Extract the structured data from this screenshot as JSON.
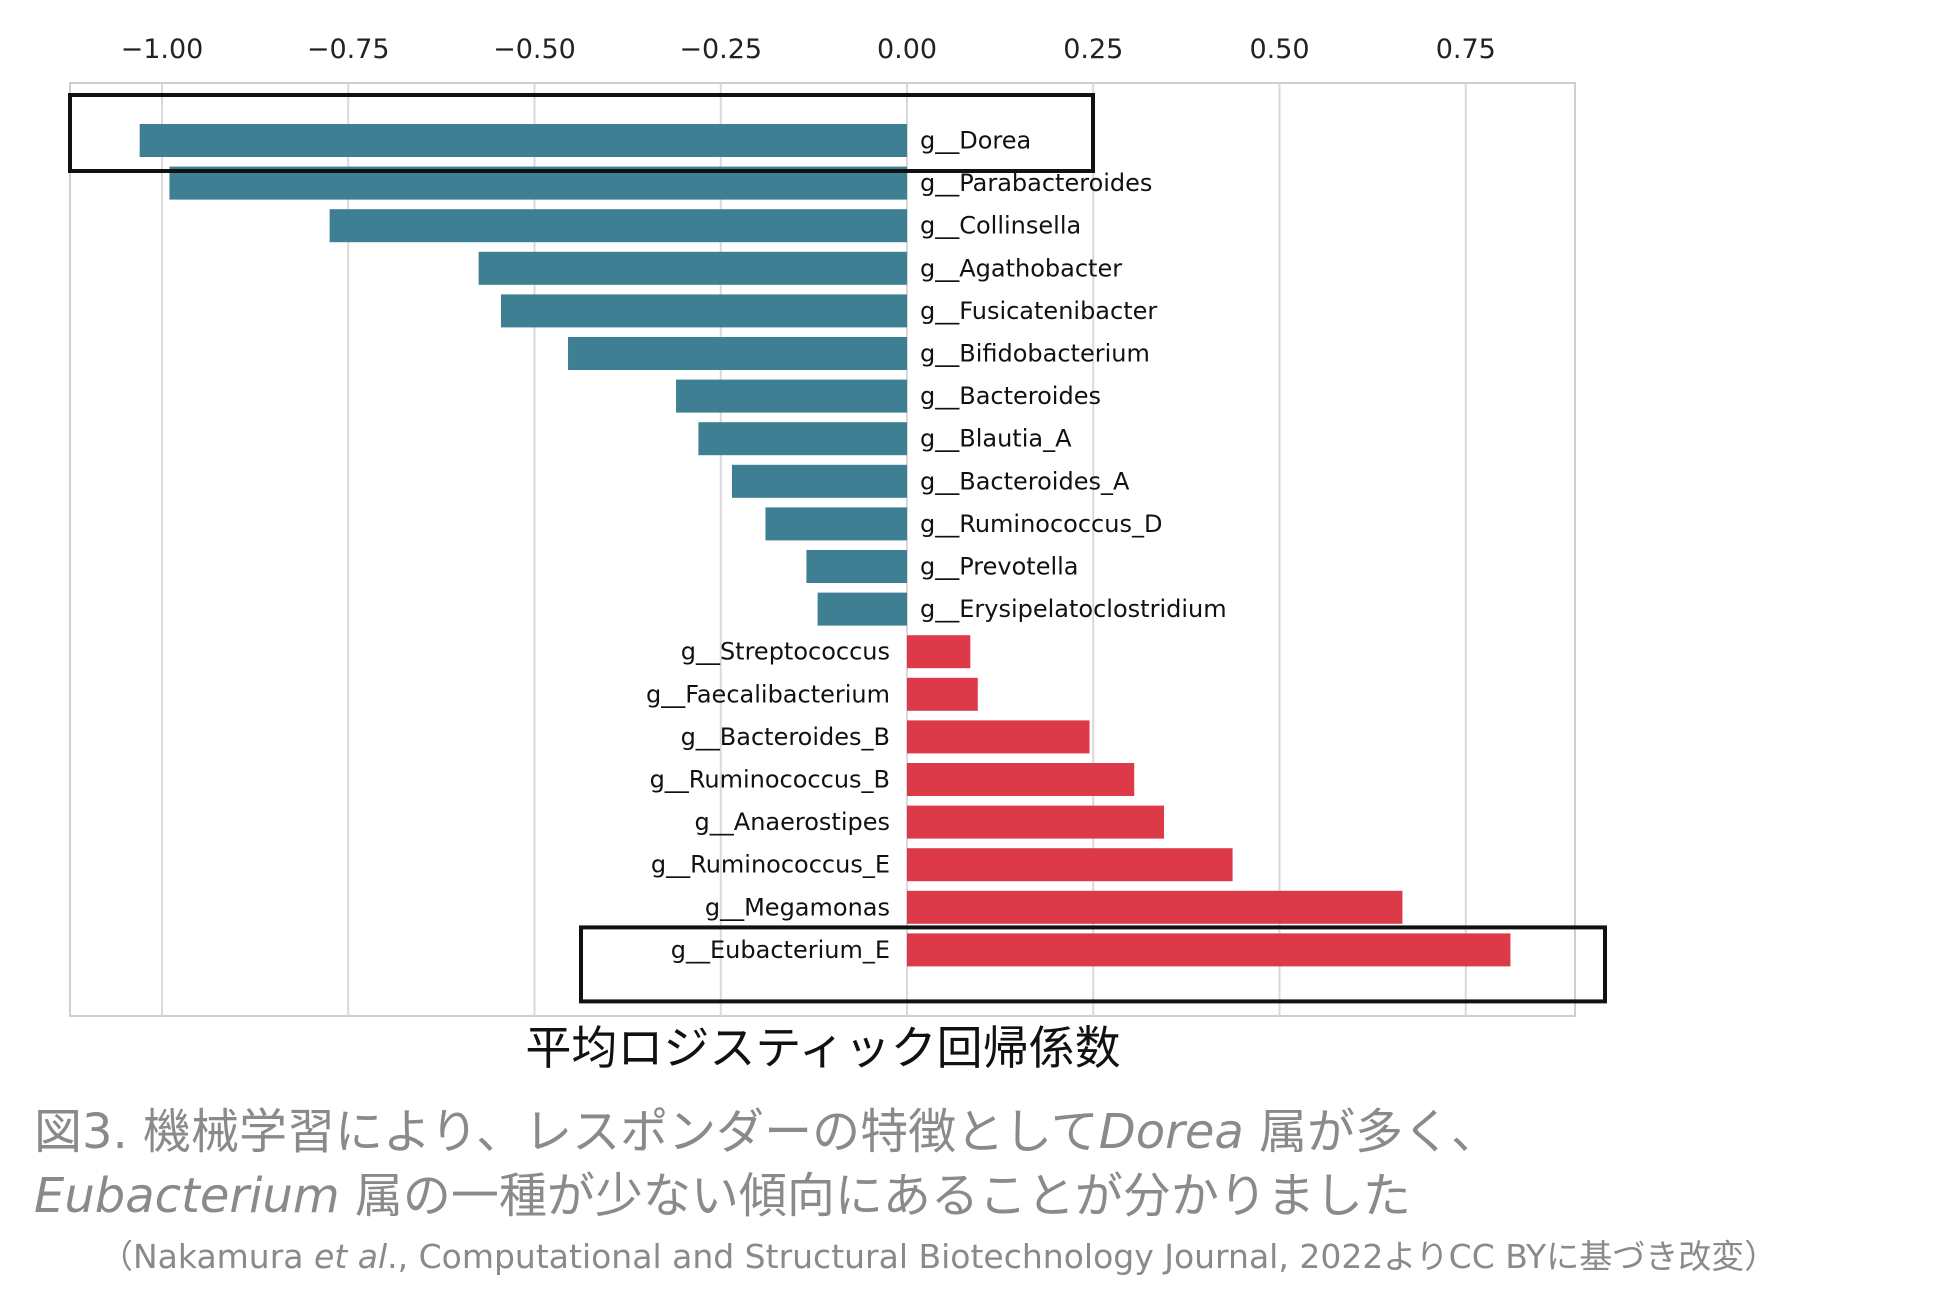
{
  "chart_data": {
    "type": "bar",
    "orientation": "horizontal",
    "xlabel": "平均ロジスティック回帰係数",
    "xlim": [
      -1.12,
      0.9
    ],
    "xticks": [
      -1.0,
      -0.75,
      -0.5,
      -0.25,
      0.0,
      0.25,
      0.5,
      0.75
    ],
    "xtick_labels": [
      "−1.00",
      "−0.75",
      "−0.50",
      "−0.25",
      "0.00",
      "0.25",
      "0.50",
      "0.75"
    ],
    "grid": true,
    "categories": [
      "g__Dorea",
      "g__Parabacteroides",
      "g__Collinsella",
      "g__Agathobacter",
      "g__Fusicatenibacter",
      "g__Bifidobacterium",
      "g__Bacteroides",
      "g__Blautia_A",
      "g__Bacteroides_A",
      "g__Ruminococcus_D",
      "g__Prevotella",
      "g__Erysipelatoclostridium",
      "g__Streptococcus",
      "g__Faecalibacterium",
      "g__Bacteroides_B",
      "g__Ruminococcus_B",
      "g__Anaerostipes",
      "g__Ruminococcus_E",
      "g__Megamonas",
      "g__Eubacterium_E"
    ],
    "values": [
      -1.03,
      -0.99,
      -0.775,
      -0.575,
      -0.545,
      -0.455,
      -0.31,
      -0.28,
      -0.235,
      -0.19,
      -0.135,
      -0.12,
      0.085,
      0.095,
      0.245,
      0.305,
      0.345,
      0.437,
      0.665,
      0.81
    ],
    "highlighted": [
      "g__Dorea",
      "g__Eubacterium_E"
    ],
    "colors": {
      "negative": "#3e7f93",
      "positive": "#dc3a48",
      "grid": "#d9d9d9",
      "highlight_box": "#111111"
    }
  },
  "caption": {
    "line1_pre": "図3. 機械学習により、レスポンダーの特徴として",
    "line1_genus": "Dorea",
    "line1_post": " 属が多く、",
    "line2_genus": "Eubacterium",
    "line2_post": " 属の一種が少ない傾向にあることが分かりました",
    "source_pre": "（Nakamura ",
    "source_em": "et al",
    "source_post": "., Computational and Structural Biotechnology Journal, 2022よりCC BYに基づき改変）"
  }
}
